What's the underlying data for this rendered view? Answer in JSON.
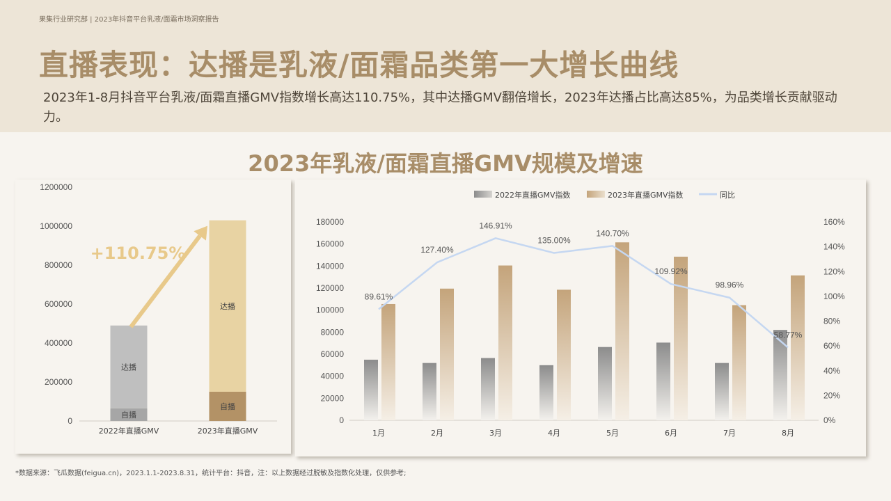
{
  "header_note": "果集行业研究部 | 2023年抖音平台乳液/面霜市场洞察报告",
  "title": "直播表现：达播是乳液/面霜品类第一大增长曲线",
  "subtitle": "2023年1-8月抖音平台乳液/面霜直播GMV指数增长高达110.75%，其中达播GMV翻倍增长，2023年达播占比高达85%，为品类增长贡献驱动力。",
  "section_title": "2023年乳液/面霜直播GMV规模及增速",
  "footnote": "*数据来源：飞瓜数据(feigua.cn)，2023.1.1-2023.8.31，统计平台：抖音，注：以上数据经过脱敏及指数化处理，仅供参考;",
  "chart_data": [
    {
      "type": "bar",
      "stacked": true,
      "categories": [
        "2022年直播GMV",
        "2023年直播GMV"
      ],
      "series": [
        {
          "name": "自播",
          "values": [
            65000,
            150000
          ],
          "colors": [
            "#a6a6a6",
            "#b39266"
          ]
        },
        {
          "name": "达播",
          "values": [
            425000,
            880000
          ],
          "colors": [
            "#bfbfbf",
            "#e8d3a3"
          ]
        }
      ],
      "ylim": [
        0,
        1200000
      ],
      "yticks": [
        0,
        200000,
        400000,
        600000,
        800000,
        1000000,
        1200000
      ],
      "annotation": "+110.75%",
      "annotation_color": "#e8c98a",
      "grid": false
    },
    {
      "type": "bar+line",
      "categories": [
        "1月",
        "2月",
        "3月",
        "4月",
        "5月",
        "6月",
        "7月",
        "8月"
      ],
      "series": [
        {
          "name": "2022年直播GMV指数",
          "type": "bar",
          "axis": "left",
          "values": [
            55000,
            52000,
            56500,
            50000,
            66500,
            70500,
            52000,
            82000
          ],
          "color": "#8c8c8c"
        },
        {
          "name": "2023年直播GMV指数",
          "type": "bar",
          "axis": "left",
          "values": [
            105500,
            119500,
            140500,
            118500,
            161500,
            148500,
            104500,
            131500
          ],
          "color": "#c8a880"
        },
        {
          "name": "同比",
          "type": "line",
          "axis": "right",
          "values": [
            89.61,
            127.4,
            146.91,
            135.0,
            140.7,
            109.92,
            98.96,
            58.77
          ],
          "labels": [
            "89.61%",
            "127.40%",
            "146.91%",
            "135.00%",
            "140.70%",
            "109.92%",
            "98.96%",
            "58.77%"
          ],
          "color": "#c5d7f1"
        }
      ],
      "ylim": [
        0,
        180000
      ],
      "yticks": [
        0,
        20000,
        40000,
        60000,
        80000,
        100000,
        120000,
        140000,
        160000,
        180000
      ],
      "y2lim": [
        0,
        160
      ],
      "y2ticks": [
        "0%",
        "20%",
        "40%",
        "60%",
        "80%",
        "100%",
        "120%",
        "140%",
        "160%"
      ],
      "legend": "top",
      "grid": false
    }
  ]
}
